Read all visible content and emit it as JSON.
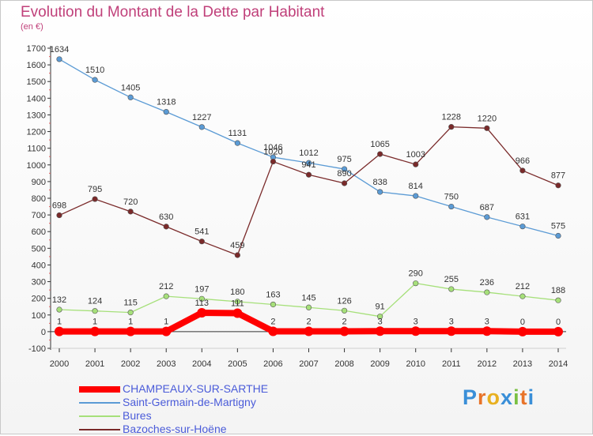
{
  "header": {
    "title": "Evolution du Montant de la Dette par Habitant",
    "unit": "(en €)"
  },
  "logo": {
    "letters": [
      "P",
      "r",
      "o",
      "x",
      "i",
      "t",
      "i"
    ],
    "colors": [
      "#3a8fd8",
      "#e8742a",
      "#e8b020",
      "#3a8fd8",
      "#7ac043",
      "#e8742a",
      "#3a8fd8"
    ]
  },
  "chart_data": {
    "type": "line",
    "title": "Evolution du Montant de la Dette par Habitant",
    "ylabel": "(en €)",
    "xlabel": "",
    "x": [
      "2000",
      "2001",
      "2002",
      "2003",
      "2004",
      "2005",
      "2006",
      "2007",
      "2008",
      "2009",
      "2010",
      "2011",
      "2012",
      "2013",
      "2014"
    ],
    "ylim": [
      -100,
      1700
    ],
    "yticks": [
      -100,
      0,
      100,
      200,
      300,
      400,
      500,
      600,
      700,
      800,
      900,
      1000,
      1100,
      1200,
      1300,
      1400,
      1500,
      1600,
      1700
    ],
    "grid": false,
    "legend": "bottom-left",
    "series": [
      {
        "name": "Saint-Germain-de-Martigny",
        "color": "#5b9bd5",
        "values": [
          1634,
          1510,
          1405,
          1318,
          1227,
          1131,
          1046,
          1012,
          975,
          838,
          814,
          750,
          687,
          631,
          575
        ]
      },
      {
        "name": "Bazoches-sur-Hoëne",
        "color": "#7a2a2a",
        "values": [
          698,
          795,
          720,
          630,
          541,
          459,
          1020,
          941,
          890,
          1065,
          1003,
          1228,
          1220,
          966,
          877
        ]
      },
      {
        "name": "Bures",
        "color": "#a6e07a",
        "values": [
          132,
          124,
          115,
          212,
          197,
          180,
          163,
          145,
          126,
          91,
          290,
          255,
          236,
          212,
          188
        ]
      },
      {
        "name": "CHAMPEAUX-SUR-SARTHE",
        "color": "#ff0000",
        "values": [
          1,
          1,
          1,
          1,
          113,
          111,
          2,
          2,
          2,
          3,
          3,
          3,
          3,
          0,
          0
        ]
      }
    ]
  }
}
